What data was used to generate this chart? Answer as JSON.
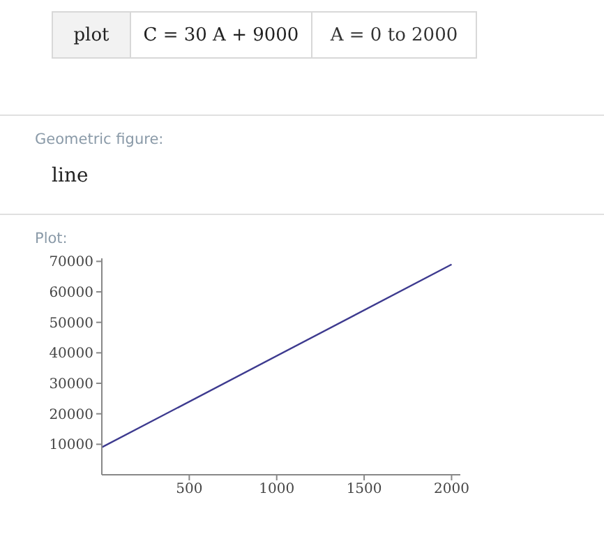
{
  "chart_data": {
    "type": "line",
    "title": "Plot:",
    "annotations": [
      "plot",
      "C = 30 A + 9000",
      "A = 0 to 2000",
      "Geometric figure:",
      "line"
    ],
    "x": [
      0,
      2000
    ],
    "series": [
      {
        "color": "#3d3a8f",
        "values": [
          9000,
          69000
        ]
      }
    ],
    "xlim": [
      0,
      2050
    ],
    "xticks": [
      500,
      1000,
      1500,
      2000
    ],
    "ylim": [
      0,
      71000
    ],
    "yticks": [
      10000,
      20000,
      30000,
      40000,
      50000,
      60000,
      70000
    ],
    "grid": false,
    "legend": false,
    "marker": "none",
    "line_style": "solid"
  }
}
